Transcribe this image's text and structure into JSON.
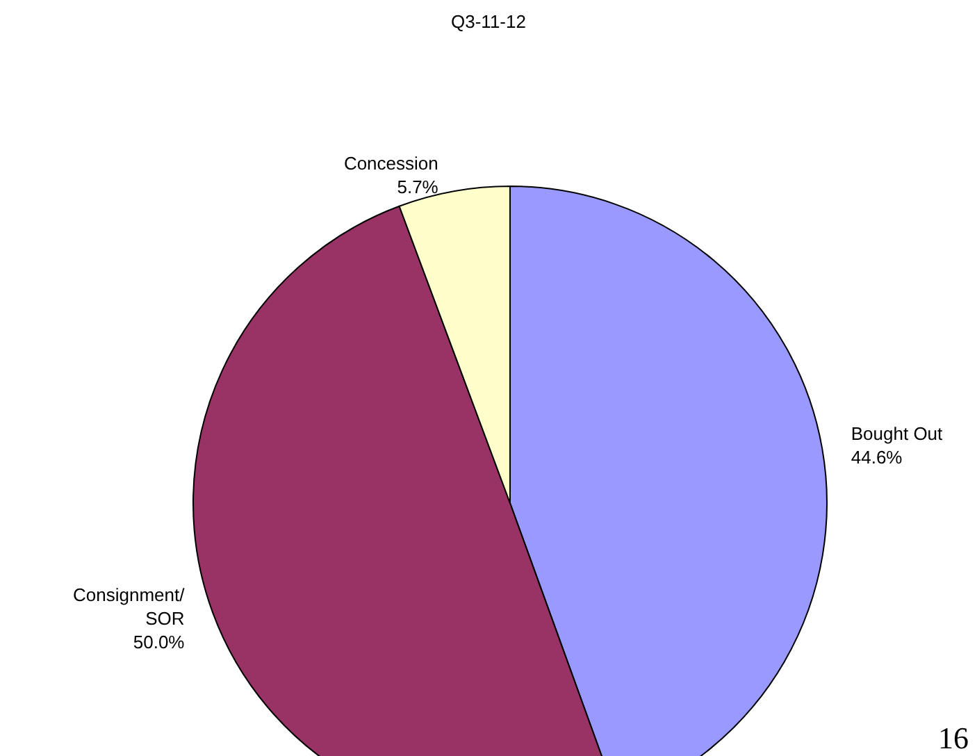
{
  "chart_data": {
    "type": "pie",
    "title": "Q3-11-12",
    "categories": [
      "Bought Out",
      "Consignment/\nSOR",
      "Concession"
    ],
    "values": [
      44.6,
      50.0,
      5.7
    ],
    "value_labels": [
      "44.6%",
      "50.0%",
      "5.7%"
    ],
    "colors": [
      "#9999ff",
      "#993366",
      "#ffffcc"
    ],
    "legend": false,
    "annotations": [
      "16"
    ]
  }
}
